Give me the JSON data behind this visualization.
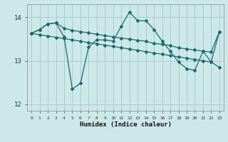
{
  "xlabel": "Humidex (Indice chaleur)",
  "background_color": "#cce8e8",
  "grid_color": "#aacccc",
  "line_color": "#1a6b6b",
  "xlim": [
    -0.5,
    23.5
  ],
  "ylim": [
    11.85,
    14.3
  ],
  "yticks": [
    12,
    13,
    14
  ],
  "xticks": [
    0,
    1,
    2,
    3,
    4,
    5,
    6,
    7,
    8,
    9,
    10,
    11,
    12,
    13,
    14,
    15,
    16,
    17,
    18,
    19,
    20,
    21,
    22,
    23
  ],
  "line1_x": [
    0,
    1,
    2,
    3,
    4,
    5,
    6,
    7,
    8,
    9,
    10,
    11,
    12,
    13,
    14,
    15,
    16,
    17,
    18,
    19,
    20,
    21,
    22,
    23
  ],
  "line1_y": [
    13.63,
    13.72,
    13.85,
    13.87,
    13.55,
    12.35,
    12.48,
    13.32,
    13.48,
    13.48,
    13.45,
    13.8,
    14.12,
    13.92,
    13.92,
    13.72,
    13.45,
    13.22,
    12.97,
    12.82,
    12.78,
    13.22,
    12.97,
    13.67
  ],
  "line2_x": [
    0,
    1,
    2,
    3,
    4,
    5,
    6,
    7,
    8,
    9,
    10,
    11,
    12,
    13,
    14,
    15,
    16,
    17,
    18,
    19,
    20,
    21,
    22,
    23
  ],
  "line2_y": [
    13.63,
    13.6,
    13.57,
    13.54,
    13.51,
    13.48,
    13.45,
    13.42,
    13.39,
    13.36,
    13.33,
    13.3,
    13.27,
    13.24,
    13.21,
    13.18,
    13.15,
    13.12,
    13.09,
    13.06,
    13.03,
    13.0,
    12.97,
    12.85
  ],
  "line3_x": [
    0,
    1,
    2,
    3,
    4,
    5,
    6,
    7,
    8,
    9,
    10,
    11,
    12,
    13,
    14,
    15,
    16,
    17,
    18,
    19,
    20,
    21,
    22,
    23
  ],
  "line3_y": [
    13.63,
    13.72,
    13.85,
    13.87,
    13.75,
    13.7,
    13.67,
    13.64,
    13.61,
    13.58,
    13.55,
    13.52,
    13.5,
    13.47,
    13.45,
    13.4,
    13.38,
    13.35,
    13.3,
    13.27,
    13.25,
    13.22,
    13.2,
    13.67
  ]
}
